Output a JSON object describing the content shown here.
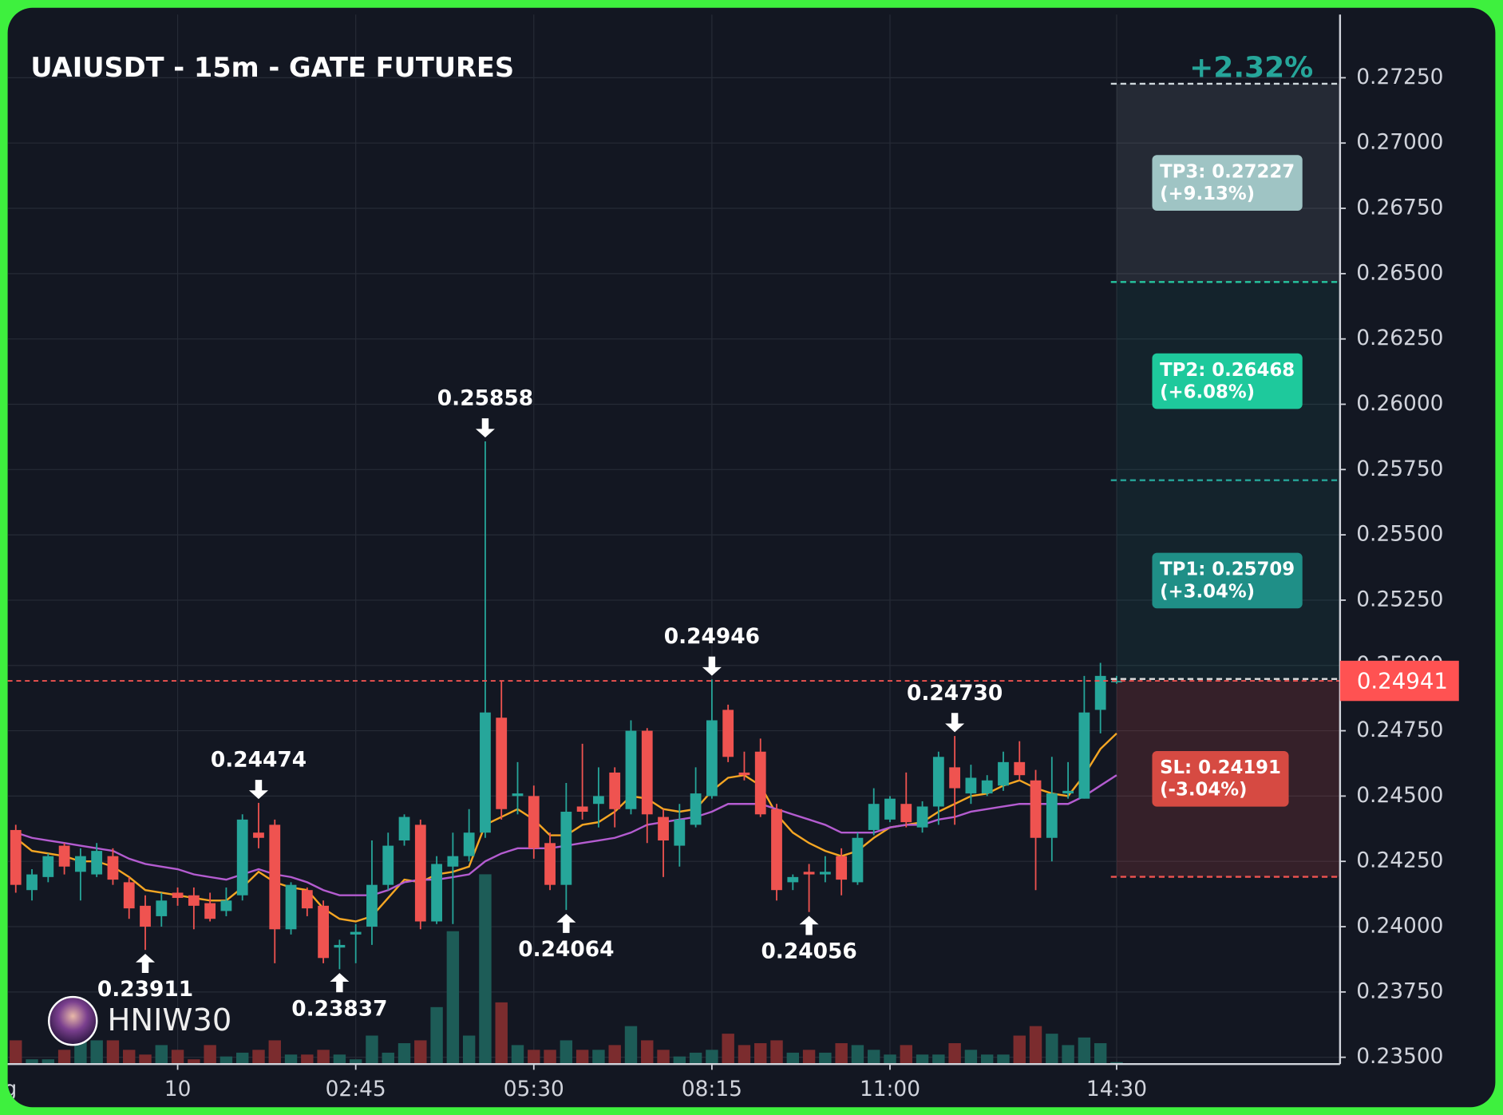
{
  "chart_data": {
    "type": "candlestick",
    "title": "UAIUSDT - 15m - GATE FUTURES",
    "change_label": "+2.32%",
    "colors": {
      "up": "#26a69a",
      "down": "#ef5350",
      "volume_up": "#1d5c57",
      "volume_down": "#7b2c2e"
    },
    "open": [
      0.2437,
      0.2414,
      0.2419,
      0.2431,
      0.2421,
      0.242,
      0.2427,
      0.2417,
      0.2408,
      0.2404,
      0.2413,
      0.2412,
      0.2409,
      0.2406,
      0.2412,
      0.2436,
      0.2439,
      0.2399,
      0.2414,
      0.2408,
      0.2392,
      0.2397,
      0.24,
      0.2416,
      0.2433,
      0.2439,
      0.2402,
      0.2423,
      0.2427,
      0.2436,
      0.248,
      0.245,
      0.245,
      0.2432,
      0.2416,
      0.2446,
      0.2447,
      0.2459,
      0.2445,
      0.2475,
      0.2442,
      0.2431,
      0.2439,
      0.245,
      0.2483,
      0.2459,
      0.2467,
      0.2445,
      0.2417,
      0.2421,
      0.242,
      0.2427,
      0.2417,
      0.2437,
      0.2441,
      0.2447,
      0.2438,
      0.2446,
      0.2461,
      0.2451,
      0.2451,
      0.2454,
      0.2463,
      0.2456,
      0.2434,
      0.2451,
      0.2449,
      0.2483,
      0.2494
    ],
    "high": [
      0.2439,
      0.2422,
      0.2428,
      0.2432,
      0.243,
      0.2432,
      0.243,
      0.2419,
      0.2412,
      0.2413,
      0.2415,
      0.2415,
      0.2413,
      0.2415,
      0.2443,
      0.24474,
      0.2441,
      0.2417,
      0.2415,
      0.241,
      0.2395,
      0.2401,
      0.2433,
      0.2436,
      0.2443,
      0.2441,
      0.2427,
      0.2436,
      0.2445,
      0.25858,
      0.2494,
      0.2463,
      0.2454,
      0.2436,
      0.2455,
      0.247,
      0.2461,
      0.2461,
      0.2479,
      0.2476,
      0.2445,
      0.2447,
      0.2461,
      0.24946,
      0.2485,
      0.2467,
      0.2472,
      0.2447,
      0.242,
      0.2424,
      0.2427,
      0.243,
      0.2436,
      0.2453,
      0.245,
      0.2459,
      0.2448,
      0.2467,
      0.2473,
      0.2462,
      0.2458,
      0.2467,
      0.2471,
      0.246,
      0.2465,
      0.2463,
      0.2496,
      0.2501,
      0.2496
    ],
    "low": [
      0.2413,
      0.241,
      0.2417,
      0.242,
      0.241,
      0.2419,
      0.2416,
      0.2403,
      0.23911,
      0.24,
      0.2408,
      0.2399,
      0.2402,
      0.2404,
      0.241,
      0.243,
      0.2386,
      0.2397,
      0.2404,
      0.2386,
      0.23837,
      0.2386,
      0.2393,
      0.2414,
      0.2431,
      0.2399,
      0.2401,
      0.2401,
      0.2425,
      0.2434,
      0.2441,
      0.2443,
      0.2426,
      0.2414,
      0.24064,
      0.2441,
      0.2438,
      0.2438,
      0.2443,
      0.2432,
      0.2419,
      0.2423,
      0.2438,
      0.2449,
      0.2463,
      0.2456,
      0.2442,
      0.241,
      0.2414,
      0.24056,
      0.2417,
      0.2412,
      0.2416,
      0.2435,
      0.244,
      0.2438,
      0.2436,
      0.2439,
      0.2439,
      0.2447,
      0.245,
      0.2452,
      0.2456,
      0.2414,
      0.2425,
      0.2449,
      0.2449,
      0.2474,
      0.2493
    ],
    "close": [
      0.2416,
      0.242,
      0.2427,
      0.2423,
      0.2427,
      0.2429,
      0.2418,
      0.2407,
      0.24,
      0.241,
      0.2411,
      0.2408,
      0.2403,
      0.241,
      0.2441,
      0.2434,
      0.2399,
      0.2416,
      0.2407,
      0.2388,
      0.2393,
      0.2398,
      0.2416,
      0.2431,
      0.2442,
      0.2402,
      0.2424,
      0.2427,
      0.2436,
      0.2482,
      0.2445,
      0.2451,
      0.243,
      0.2416,
      0.2444,
      0.2444,
      0.245,
      0.2445,
      0.2475,
      0.2443,
      0.2433,
      0.2441,
      0.2451,
      0.2479,
      0.2465,
      0.2458,
      0.2443,
      0.2414,
      0.2419,
      0.242,
      0.2421,
      0.2418,
      0.2434,
      0.2447,
      0.2449,
      0.244,
      0.2446,
      0.2465,
      0.2453,
      0.2457,
      0.2456,
      0.2463,
      0.2458,
      0.2434,
      0.2451,
      0.2452,
      0.2482,
      0.2496,
      0.24941
    ],
    "volume": [
      25,
      5,
      5,
      15,
      25,
      25,
      25,
      15,
      10,
      20,
      15,
      5,
      20,
      8,
      12,
      15,
      25,
      10,
      10,
      15,
      10,
      5,
      30,
      12,
      22,
      25,
      60,
      140,
      30,
      200,
      65,
      20,
      15,
      15,
      25,
      15,
      15,
      20,
      40,
      25,
      15,
      8,
      12,
      15,
      32,
      20,
      22,
      25,
      12,
      15,
      12,
      22,
      20,
      15,
      10,
      20,
      10,
      10,
      22,
      15,
      10,
      10,
      30,
      40,
      32,
      20,
      28,
      22,
      2
    ],
    "series": [
      {
        "color": "#f5a623",
        "values": [
          0.2434,
          0.2429,
          0.2428,
          0.2427,
          0.2425,
          0.2425,
          0.2423,
          0.2419,
          0.2414,
          0.2413,
          0.2412,
          0.2411,
          0.241,
          0.241,
          0.2415,
          0.2421,
          0.2417,
          0.2415,
          0.2414,
          0.2407,
          0.2403,
          0.2402,
          0.2404,
          0.2411,
          0.2418,
          0.2417,
          0.242,
          0.2421,
          0.2423,
          0.2439,
          0.2442,
          0.2445,
          0.2441,
          0.2435,
          0.2435,
          0.2439,
          0.244,
          0.2444,
          0.245,
          0.2449,
          0.2445,
          0.2444,
          0.2445,
          0.2452,
          0.2457,
          0.2458,
          0.2454,
          0.2443,
          0.2436,
          0.2432,
          0.2429,
          0.2427,
          0.2429,
          0.2434,
          0.2438,
          0.2439,
          0.244,
          0.2444,
          0.2447,
          0.245,
          0.2451,
          0.2454,
          0.2456,
          0.2453,
          0.2451,
          0.245,
          0.2458,
          0.2468,
          0.2474
        ]
      },
      {
        "color": "#b45cd0",
        "values": [
          0.2436,
          0.2434,
          0.2433,
          0.2432,
          0.2431,
          0.243,
          0.2429,
          0.2426,
          0.2424,
          0.2423,
          0.2422,
          0.242,
          0.2419,
          0.2418,
          0.242,
          0.2422,
          0.242,
          0.2419,
          0.2417,
          0.2414,
          0.2412,
          0.2412,
          0.2412,
          0.2414,
          0.2417,
          0.2418,
          0.2418,
          0.2419,
          0.242,
          0.2425,
          0.2428,
          0.243,
          0.243,
          0.243,
          0.2431,
          0.2432,
          0.2433,
          0.2434,
          0.2436,
          0.2439,
          0.244,
          0.2441,
          0.2442,
          0.2444,
          0.2447,
          0.2447,
          0.2447,
          0.2445,
          0.2443,
          0.2441,
          0.2439,
          0.2436,
          0.2436,
          0.2436,
          0.2438,
          0.2439,
          0.2439,
          0.2441,
          0.2442,
          0.2444,
          0.2445,
          0.2446,
          0.2447,
          0.2447,
          0.2447,
          0.2447,
          0.245,
          0.2454,
          0.2458
        ]
      }
    ],
    "xlim": [
      -0.5,
      81.8
    ],
    "xticks": [
      {
        "value": -1.2,
        "label": "Aug"
      },
      {
        "value": 10,
        "label": "10"
      },
      {
        "value": 21,
        "label": "02:45"
      },
      {
        "value": 32,
        "label": "05:30"
      },
      {
        "value": 43,
        "label": "08:15"
      },
      {
        "value": 54,
        "label": "11:00"
      },
      {
        "value": 68,
        "label": "14:30"
      }
    ],
    "ylim": [
      0.23474,
      0.27492
    ],
    "yticks": [
      {
        "value": 0.235,
        "label": "0.23500"
      },
      {
        "value": 0.2375,
        "label": "0.23750"
      },
      {
        "value": 0.24,
        "label": "0.24000"
      },
      {
        "value": 0.2425,
        "label": "0.24250"
      },
      {
        "value": 0.245,
        "label": "0.24500"
      },
      {
        "value": 0.2475,
        "label": "0.24750"
      },
      {
        "value": 0.25,
        "label": "0.25000"
      },
      {
        "value": 0.2525,
        "label": "0.25250"
      },
      {
        "value": 0.255,
        "label": "0.25500"
      },
      {
        "value": 0.2575,
        "label": "0.25750"
      },
      {
        "value": 0.26,
        "label": "0.26000"
      },
      {
        "value": 0.2625,
        "label": "0.26250"
      },
      {
        "value": 0.265,
        "label": "0.26500"
      },
      {
        "value": 0.2675,
        "label": "0.26750"
      },
      {
        "value": 0.27,
        "label": "0.27000"
      },
      {
        "value": 0.2725,
        "label": "0.27250"
      }
    ],
    "grid": true,
    "last_price": {
      "value": 0.24941
    },
    "levels": [
      {
        "value": 0.27227,
        "label": "TP3: 0.27227",
        "change": "(+9.13%)",
        "color": "#9fc4c4",
        "line_color": "#cfd8dc",
        "zone_color": "rgba(190,200,210,0.11)"
      },
      {
        "value": 0.26468,
        "label": "TP2: 0.26468",
        "change": "(+6.08%)",
        "color": "#1ec99c",
        "line_color": "#26c6a0",
        "zone_color": "rgba(38,166,154,0.09)"
      },
      {
        "value": 0.25709,
        "label": "TP1: 0.25709",
        "change": "(+3.04%)",
        "color": "#1f8f87",
        "line_color": "#26a69a",
        "zone_color": "rgba(38,166,154,0.09)"
      },
      {
        "value": 0.24191,
        "label": "SL: 0.24191",
        "change": "(-3.04%)",
        "color": "#d64a42",
        "line_color": "#ef5350",
        "zone_color": "rgba(239,83,80,0.16)"
      }
    ],
    "annotations": [
      {
        "x": 29,
        "value": 0.25858,
        "label": "0.25858",
        "side": "high"
      },
      {
        "x": 15,
        "value": 0.24474,
        "label": "0.24474",
        "side": "high"
      },
      {
        "x": 43,
        "value": 0.24946,
        "label": "0.24946",
        "side": "high"
      },
      {
        "x": 58,
        "value": 0.2473,
        "label": "0.24730",
        "side": "high"
      },
      {
        "x": 8,
        "value": 0.23911,
        "label": "0.23911",
        "side": "low"
      },
      {
        "x": 20,
        "value": 0.23837,
        "label": "0.23837",
        "side": "low"
      },
      {
        "x": 34,
        "value": 0.24064,
        "label": "0.24064",
        "side": "low"
      },
      {
        "x": 49,
        "value": 0.24056,
        "label": "0.24056",
        "side": "low"
      }
    ],
    "watermark": "HNIW30"
  }
}
